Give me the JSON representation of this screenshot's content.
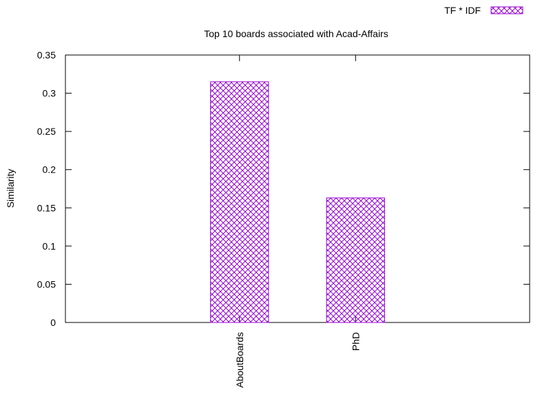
{
  "chart_data": {
    "type": "bar",
    "title": "Top 10 boards associated with Acad-Affairs",
    "xlabel": "",
    "ylabel": "Similarity",
    "categories": [
      "AboutBoards",
      "PhD"
    ],
    "series": [
      {
        "name": "TF * IDF",
        "values": [
          0.315,
          0.163
        ]
      }
    ],
    "ylim": [
      0,
      0.35
    ],
    "yticks": [
      0,
      0.05,
      0.1,
      0.15,
      0.2,
      0.25,
      0.3,
      0.35
    ],
    "ytick_labels": [
      "0",
      "0.05",
      "0.1",
      "0.15",
      "0.2",
      "0.25",
      "0.3",
      "0.35"
    ],
    "grid": false,
    "legend_position": "top-right",
    "bar_color": "#9400d3",
    "bar_fill": "crosshatch"
  }
}
